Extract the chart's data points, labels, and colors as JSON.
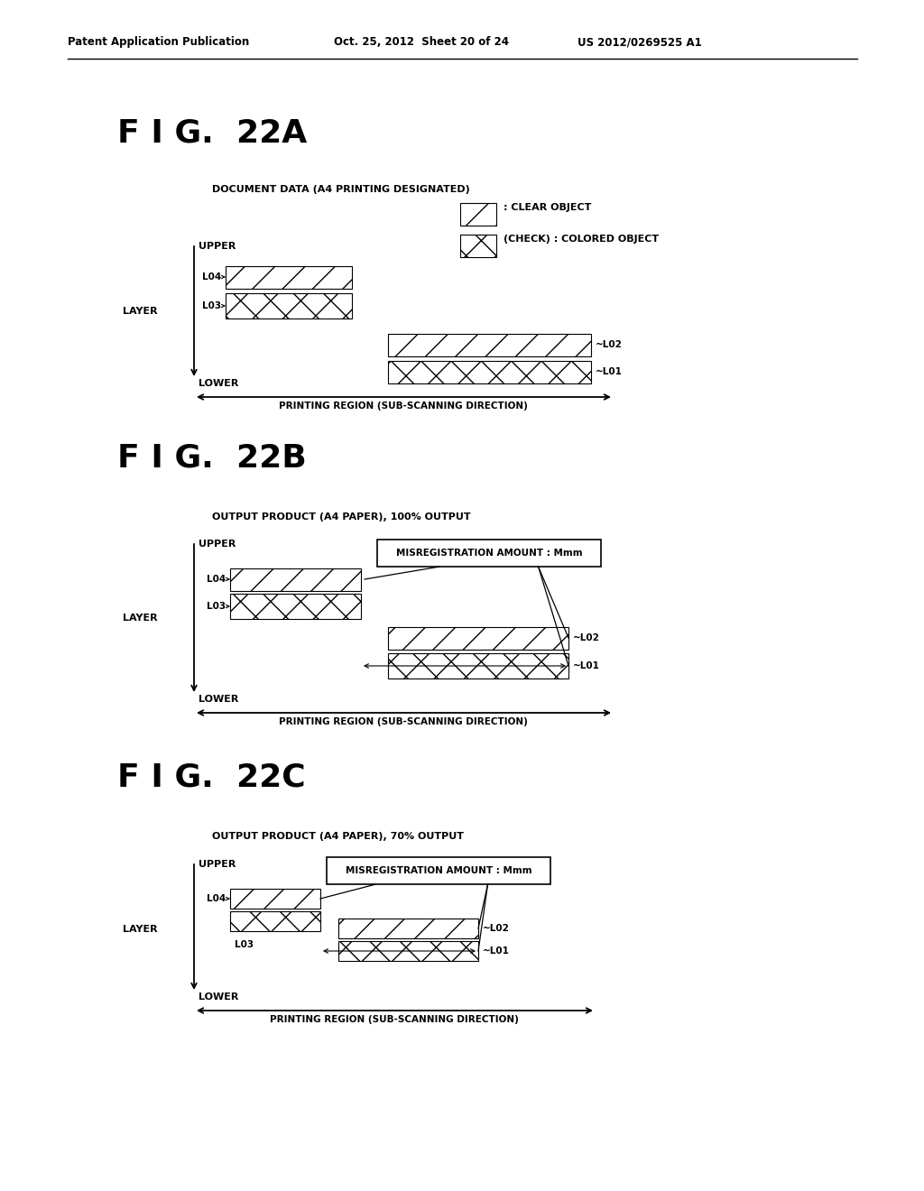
{
  "bg_color": "#ffffff",
  "header_text1": "Patent Application Publication",
  "header_text2": "Oct. 25, 2012  Sheet 20 of 24",
  "header_text3": "US 2012/0269525 A1",
  "fig22a_title": "F I G.  22A",
  "fig22a_subtitle": "DOCUMENT DATA (A4 PRINTING DESIGNATED)",
  "fig22b_title": "F I G.  22B",
  "fig22b_subtitle": "OUTPUT PRODUCT (A4 PAPER), 100% OUTPUT",
  "fig22c_title": "F I G.  22C",
  "fig22c_subtitle": "OUTPUT PRODUCT (A4 PAPER), 70% OUTPUT",
  "legend_clear": ": CLEAR OBJECT",
  "legend_colored": "(CHECK) : COLORED OBJECT",
  "misreg_label": "MISREGISTRATION AMOUNT : Mmm",
  "printing_region_label": "PRINTING REGION (SUB-SCANNING DIRECTION)",
  "upper_label": "UPPER",
  "lower_label": "LOWER",
  "layer_label": "LAYER",
  "l04": "L04",
  "l03": "L03",
  "l02": "~L02",
  "l01": "~L01",
  "l03_plain": "L03"
}
